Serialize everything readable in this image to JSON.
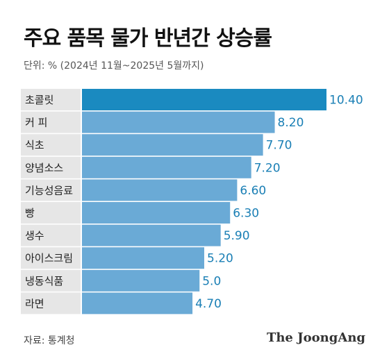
{
  "chart_data": {
    "type": "bar",
    "orientation": "horizontal",
    "title": "주요 품목 물가 반년간 상승률",
    "subtitle": "단위: % (2024년 11월~2025년 5월까지)",
    "categories": [
      "초콜릿",
      "커 피",
      "식초",
      "양념소스",
      "기능성음료",
      "빵",
      "생수",
      "아이스크림",
      "냉동식품",
      "라면"
    ],
    "values": [
      10.4,
      8.2,
      7.7,
      7.2,
      6.6,
      6.3,
      5.9,
      5.2,
      5.0,
      4.7
    ],
    "value_labels": [
      "10.40",
      "8.20",
      "7.70",
      "7.20",
      "6.60",
      "6.30",
      "5.90",
      "5.20",
      "5.0",
      "4.70"
    ],
    "xlim": [
      0,
      10.4
    ],
    "grid": false,
    "colors": {
      "highlight_bar": "#1a8ac0",
      "bar": "#6aaad6",
      "label_bg": "#e6e6e6",
      "value_text": "#1a7fb5"
    }
  },
  "footer": {
    "source": "자료: 통계청",
    "brand": "The JoongAng"
  }
}
